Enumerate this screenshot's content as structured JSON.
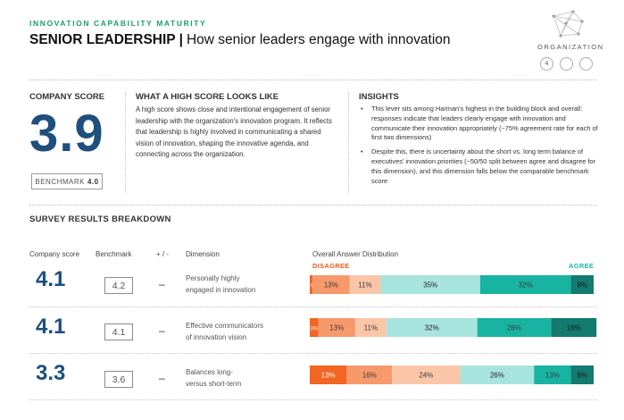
{
  "header": {
    "kicker": "INNOVATION CAPABILITY MATURITY",
    "title": "SENIOR LEADERSHIP",
    "separator": "|",
    "subtitle": "How senior leaders engage with innovation"
  },
  "nav": {
    "label": "ORGANIZATION",
    "steps": [
      "4",
      "",
      ""
    ]
  },
  "company_score": {
    "heading": "COMPANY SCORE",
    "value": "3.9",
    "benchmark_label": "BENCHMARK",
    "benchmark_value": "4.0"
  },
  "high_score": {
    "heading": "WHAT A HIGH SCORE LOOKS LIKE",
    "text": "A high score shows close and intentional engagement of senior leadership with the organization's innovation program. It reflects that leadership is highly involved in communicating a shared vision of innovation, shaping the innovative agenda, and connecting across the organization."
  },
  "insights": {
    "heading": "INSIGHTS",
    "items": [
      "This lever sits among Harman's highest in the building block and overall: responses indicate that leaders clearly engage with innovation and communicate their innovation appropriately (~75% agreement rate for each of first two dimensions)",
      "Despite this, there is uncertainty about the short vs. long term balance of executives' innovation priorities (~50/50 split between agree and disagree for this dimension), and this dimension falls below the comparable benchmark score"
    ]
  },
  "breakdown": {
    "heading": "SURVEY RESULTS BREAKDOWN",
    "columns": {
      "company_score": "Company score",
      "benchmark": "Benchmark",
      "plus_minus": "+ / -",
      "dimension": "Dimension",
      "distribution": "Overall Answer Distribution"
    },
    "disagree_label": "DISAGREE",
    "agree_label": "AGREE",
    "rows": [
      {
        "score": "4.1",
        "benchmark": "4.2",
        "pm": "–",
        "dim_line1": "Personally highly",
        "dim_line2": "engaged in innovation"
      },
      {
        "score": "4.1",
        "benchmark": "4.1",
        "pm": "–",
        "dim_line1": "Effective communicators",
        "dim_line2": "of innovation vision"
      },
      {
        "score": "3.3",
        "benchmark": "3.6",
        "pm": "–",
        "dim_line1": "Balances long-",
        "dim_line2": "versus short-term"
      }
    ]
  },
  "chart_data": {
    "type": "bar",
    "stacked": true,
    "orientation": "horizontal",
    "title": "Overall Answer Distribution",
    "categories": [
      "Personally highly engaged in innovation",
      "Effective communicators of innovation vision",
      "Balances long- versus short-term"
    ],
    "series": [
      {
        "color": "#f26522",
        "values": [
          1,
          3,
          13
        ],
        "labels": [
          "1%",
          "3%",
          "13%"
        ]
      },
      {
        "color": "#f7996b",
        "values": [
          13,
          13,
          16
        ],
        "labels": [
          "13%",
          "13%",
          "16%"
        ]
      },
      {
        "color": "#fbc6a8",
        "values": [
          11,
          11,
          24
        ],
        "labels": [
          "11%",
          "11%",
          "24%"
        ]
      },
      {
        "color": "#a8e4de",
        "values": [
          35,
          32,
          26
        ],
        "labels": [
          "35%",
          "32%",
          "26%"
        ]
      },
      {
        "color": "#19b3a2",
        "values": [
          32,
          26,
          13
        ],
        "labels": [
          "32%",
          "26%",
          "13%"
        ]
      },
      {
        "color": "#137b70",
        "values": [
          8,
          16,
          8
        ],
        "labels": [
          "8%",
          "16%",
          "8%"
        ]
      }
    ],
    "xlim": [
      0,
      100
    ],
    "legend": [
      "DISAGREE",
      "AGREE"
    ]
  }
}
